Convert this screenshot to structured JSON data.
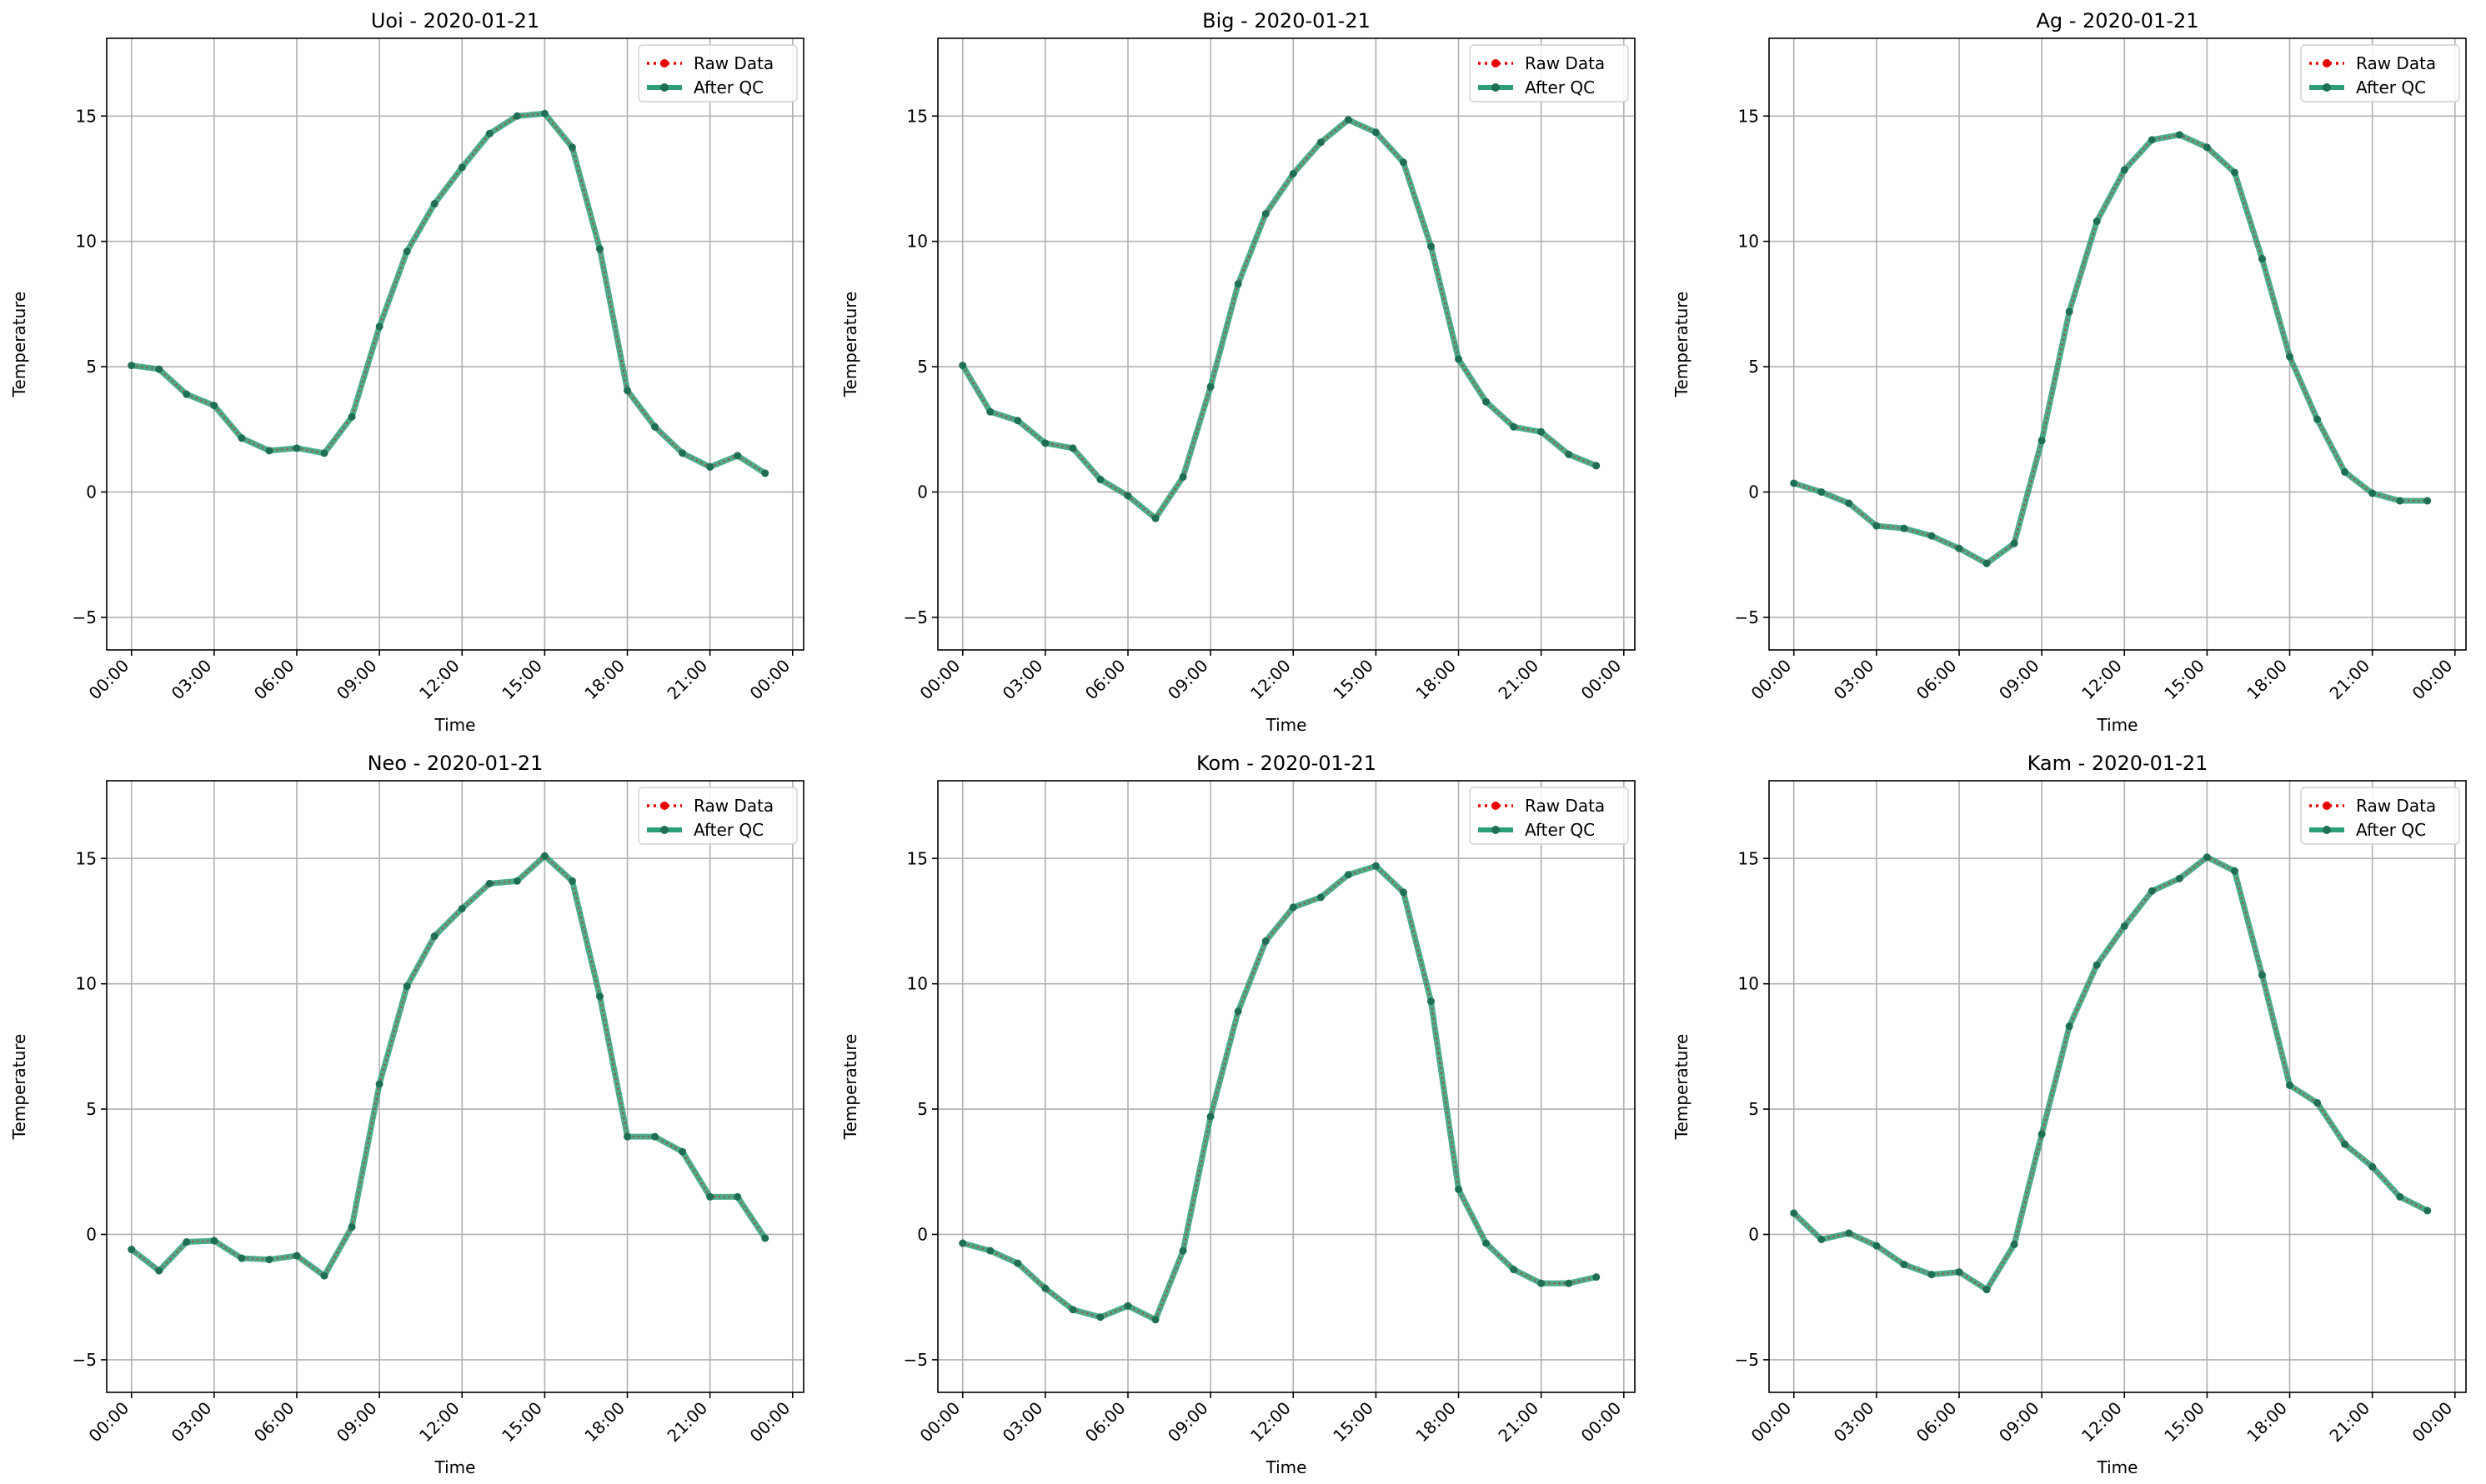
{
  "colors": {
    "raw": "#e60000",
    "qc": "#2e9e78",
    "qc_marker": "#1f6f55",
    "grid": "#b0b0b0",
    "axis": "#000000"
  },
  "legend": {
    "raw_label": "Raw Data",
    "qc_label": "After QC",
    "placement": "top-right"
  },
  "chart_data": [
    {
      "type": "line",
      "title": "Uoi - 2020-01-21",
      "xlabel": "Time",
      "ylabel": "Temperature",
      "x_tick_labels": [
        "00:00",
        "03:00",
        "06:00",
        "09:00",
        "12:00",
        "15:00",
        "18:00",
        "21:00",
        "00:00"
      ],
      "y_ticks": [
        -5,
        0,
        5,
        10,
        15
      ],
      "ylim": [
        -6.3,
        18.1
      ],
      "grid": true,
      "series": [
        {
          "name": "Raw Data",
          "x": [
            0,
            1,
            2,
            3,
            4,
            5,
            6,
            7,
            8,
            9,
            10,
            11,
            12,
            13,
            14,
            15,
            16,
            17,
            18,
            19,
            20,
            21,
            22,
            23
          ],
          "values": [
            5.05,
            4.9,
            3.9,
            3.45,
            2.15,
            1.65,
            1.75,
            1.55,
            3.0,
            6.6,
            9.6,
            11.5,
            12.95,
            14.3,
            15.0,
            15.1,
            13.75,
            9.7,
            4.05,
            2.6,
            1.55,
            1.0,
            1.45,
            0.75
          ]
        },
        {
          "name": "After QC",
          "x": [
            0,
            1,
            2,
            3,
            4,
            5,
            6,
            7,
            8,
            9,
            10,
            11,
            12,
            13,
            14,
            15,
            16,
            17,
            18,
            19,
            20,
            21,
            22,
            23
          ],
          "values": [
            5.05,
            4.9,
            3.9,
            3.45,
            2.15,
            1.65,
            1.75,
            1.55,
            3.0,
            6.6,
            9.6,
            11.5,
            12.95,
            14.3,
            15.0,
            15.1,
            13.75,
            9.7,
            4.05,
            2.6,
            1.55,
            1.0,
            1.45,
            0.75
          ]
        }
      ]
    },
    {
      "type": "line",
      "title": "Big - 2020-01-21",
      "xlabel": "Time",
      "ylabel": "Temperature",
      "x_tick_labels": [
        "00:00",
        "03:00",
        "06:00",
        "09:00",
        "12:00",
        "15:00",
        "18:00",
        "21:00",
        "00:00"
      ],
      "y_ticks": [
        -5,
        0,
        5,
        10,
        15
      ],
      "ylim": [
        -6.3,
        18.1
      ],
      "grid": true,
      "series": [
        {
          "name": "Raw Data",
          "x": [
            0,
            1,
            2,
            3,
            4,
            5,
            6,
            7,
            8,
            9,
            10,
            11,
            12,
            13,
            14,
            15,
            16,
            17,
            18,
            19,
            20,
            21,
            22,
            23
          ],
          "values": [
            5.05,
            3.2,
            2.85,
            1.95,
            1.75,
            0.5,
            -0.15,
            -1.05,
            0.6,
            4.2,
            8.3,
            11.1,
            12.7,
            13.95,
            14.85,
            14.35,
            13.15,
            9.8,
            5.3,
            3.6,
            2.6,
            2.4,
            1.5,
            1.05
          ]
        },
        {
          "name": "After QC",
          "x": [
            0,
            1,
            2,
            3,
            4,
            5,
            6,
            7,
            8,
            9,
            10,
            11,
            12,
            13,
            14,
            15,
            16,
            17,
            18,
            19,
            20,
            21,
            22,
            23
          ],
          "values": [
            5.05,
            3.2,
            2.85,
            1.95,
            1.75,
            0.5,
            -0.15,
            -1.05,
            0.6,
            4.2,
            8.3,
            11.1,
            12.7,
            13.95,
            14.85,
            14.35,
            13.15,
            9.8,
            5.3,
            3.6,
            2.6,
            2.4,
            1.5,
            1.05
          ]
        }
      ]
    },
    {
      "type": "line",
      "title": "Ag - 2020-01-21",
      "xlabel": "Time",
      "ylabel": "Temperature",
      "x_tick_labels": [
        "00:00",
        "03:00",
        "06:00",
        "09:00",
        "12:00",
        "15:00",
        "18:00",
        "21:00",
        "00:00"
      ],
      "y_ticks": [
        -5,
        0,
        5,
        10,
        15
      ],
      "ylim": [
        -6.3,
        18.1
      ],
      "grid": true,
      "series": [
        {
          "name": "Raw Data",
          "x": [
            0,
            1,
            2,
            3,
            4,
            5,
            6,
            7,
            8,
            9,
            10,
            11,
            12,
            13,
            14,
            15,
            16,
            17,
            18,
            19,
            20,
            21,
            22,
            23
          ],
          "values": [
            0.35,
            0.0,
            -0.45,
            -1.35,
            -1.45,
            -1.75,
            -2.25,
            -2.85,
            -2.05,
            2.05,
            7.2,
            10.8,
            12.85,
            14.05,
            14.25,
            13.75,
            12.75,
            9.3,
            5.4,
            2.9,
            0.8,
            -0.05,
            -0.35,
            -0.35
          ]
        },
        {
          "name": "After QC",
          "x": [
            0,
            1,
            2,
            3,
            4,
            5,
            6,
            7,
            8,
            9,
            10,
            11,
            12,
            13,
            14,
            15,
            16,
            17,
            18,
            19,
            20,
            21,
            22,
            23
          ],
          "values": [
            0.35,
            0.0,
            -0.45,
            -1.35,
            -1.45,
            -1.75,
            -2.25,
            -2.85,
            -2.05,
            2.05,
            7.2,
            10.8,
            12.85,
            14.05,
            14.25,
            13.75,
            12.75,
            9.3,
            5.4,
            2.9,
            0.8,
            -0.05,
            -0.35,
            -0.35
          ]
        }
      ]
    },
    {
      "type": "line",
      "title": "Neo - 2020-01-21",
      "xlabel": "Time",
      "ylabel": "Temperature",
      "x_tick_labels": [
        "00:00",
        "03:00",
        "06:00",
        "09:00",
        "12:00",
        "15:00",
        "18:00",
        "21:00",
        "00:00"
      ],
      "y_ticks": [
        -5,
        0,
        5,
        10,
        15
      ],
      "ylim": [
        -6.3,
        18.1
      ],
      "grid": true,
      "series": [
        {
          "name": "Raw Data",
          "x": [
            0,
            1,
            2,
            3,
            4,
            5,
            6,
            7,
            8,
            9,
            10,
            11,
            12,
            13,
            14,
            15,
            16,
            17,
            18,
            19,
            20,
            21,
            22,
            23
          ],
          "values": [
            -0.6,
            -1.45,
            -0.3,
            -0.25,
            -0.95,
            -1.0,
            -0.85,
            -1.65,
            0.3,
            6.0,
            9.9,
            11.9,
            13.0,
            14.0,
            14.1,
            15.1,
            14.1,
            9.5,
            3.9,
            3.9,
            3.3,
            1.5,
            1.5,
            -0.15
          ]
        },
        {
          "name": "After QC",
          "x": [
            0,
            1,
            2,
            3,
            4,
            5,
            6,
            7,
            8,
            9,
            10,
            11,
            12,
            13,
            14,
            15,
            16,
            17,
            18,
            19,
            20,
            21,
            22,
            23
          ],
          "values": [
            -0.6,
            -1.45,
            -0.3,
            -0.25,
            -0.95,
            -1.0,
            -0.85,
            -1.65,
            0.3,
            6.0,
            9.9,
            11.9,
            13.0,
            14.0,
            14.1,
            15.1,
            14.1,
            9.5,
            3.9,
            3.9,
            3.3,
            1.5,
            1.5,
            -0.15
          ]
        }
      ]
    },
    {
      "type": "line",
      "title": "Kom - 2020-01-21",
      "xlabel": "Time",
      "ylabel": "Temperature",
      "x_tick_labels": [
        "00:00",
        "03:00",
        "06:00",
        "09:00",
        "12:00",
        "15:00",
        "18:00",
        "21:00",
        "00:00"
      ],
      "y_ticks": [
        -5,
        0,
        5,
        10,
        15
      ],
      "ylim": [
        -6.3,
        18.1
      ],
      "grid": true,
      "series": [
        {
          "name": "Raw Data",
          "x": [
            0,
            1,
            2,
            3,
            4,
            5,
            6,
            7,
            8,
            9,
            10,
            11,
            12,
            13,
            14,
            15,
            16,
            17,
            18,
            19,
            20,
            21,
            22,
            23
          ],
          "values": [
            -0.35,
            -0.65,
            -1.15,
            -2.15,
            -3.0,
            -3.3,
            -2.85,
            -3.4,
            -0.65,
            4.7,
            8.9,
            11.7,
            13.05,
            13.45,
            14.35,
            14.7,
            13.65,
            9.3,
            1.8,
            -0.35,
            -1.4,
            -1.95,
            -1.95,
            -1.7
          ]
        },
        {
          "name": "After QC",
          "x": [
            0,
            1,
            2,
            3,
            4,
            5,
            6,
            7,
            8,
            9,
            10,
            11,
            12,
            13,
            14,
            15,
            16,
            17,
            18,
            19,
            20,
            21,
            22,
            23
          ],
          "values": [
            -0.35,
            -0.65,
            -1.15,
            -2.15,
            -3.0,
            -3.3,
            -2.85,
            -3.4,
            -0.65,
            4.7,
            8.9,
            11.7,
            13.05,
            13.45,
            14.35,
            14.7,
            13.65,
            9.3,
            1.8,
            -0.35,
            -1.4,
            -1.95,
            -1.95,
            -1.7
          ]
        }
      ]
    },
    {
      "type": "line",
      "title": "Kam - 2020-01-21",
      "xlabel": "Time",
      "ylabel": "Temperature",
      "x_tick_labels": [
        "00:00",
        "03:00",
        "06:00",
        "09:00",
        "12:00",
        "15:00",
        "18:00",
        "21:00",
        "00:00"
      ],
      "y_ticks": [
        -5,
        0,
        5,
        10,
        15
      ],
      "ylim": [
        -6.3,
        18.1
      ],
      "grid": true,
      "series": [
        {
          "name": "Raw Data",
          "x": [
            0,
            1,
            2,
            3,
            4,
            5,
            6,
            7,
            8,
            9,
            10,
            11,
            12,
            13,
            14,
            15,
            16,
            17,
            18,
            19,
            20,
            21,
            22,
            23
          ],
          "values": [
            0.85,
            -0.2,
            0.05,
            -0.45,
            -1.2,
            -1.6,
            -1.5,
            -2.2,
            -0.4,
            4.0,
            8.3,
            10.75,
            12.3,
            13.7,
            14.2,
            15.05,
            14.5,
            10.35,
            5.95,
            5.25,
            3.6,
            2.7,
            1.5,
            0.95
          ]
        },
        {
          "name": "After QC",
          "x": [
            0,
            1,
            2,
            3,
            4,
            5,
            6,
            7,
            8,
            9,
            10,
            11,
            12,
            13,
            14,
            15,
            16,
            17,
            18,
            19,
            20,
            21,
            22,
            23
          ],
          "values": [
            0.85,
            -0.2,
            0.05,
            -0.45,
            -1.2,
            -1.6,
            -1.5,
            -2.2,
            -0.4,
            4.0,
            8.3,
            10.75,
            12.3,
            13.7,
            14.2,
            15.05,
            14.5,
            10.35,
            5.95,
            5.25,
            3.6,
            2.7,
            1.5,
            0.95
          ]
        }
      ]
    }
  ]
}
